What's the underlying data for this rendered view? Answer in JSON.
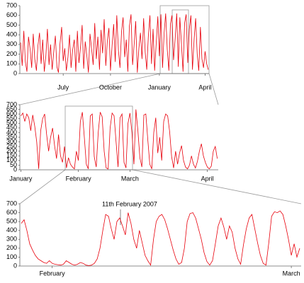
{
  "chart_data": [
    {
      "type": "line",
      "categories": [
        null,
        null,
        null,
        null,
        null,
        null,
        null,
        null,
        null,
        null,
        null,
        null,
        null,
        null,
        null,
        null,
        null,
        null,
        null,
        null,
        null,
        null,
        null,
        null,
        null,
        null,
        null,
        "July",
        null,
        null,
        null,
        null,
        null,
        null,
        null,
        null,
        null,
        null,
        null,
        null,
        null,
        null,
        null,
        null,
        null,
        null,
        null,
        null,
        null,
        null,
        null,
        null,
        null,
        null,
        null,
        null,
        null,
        "October",
        null,
        null,
        null,
        null,
        null,
        null,
        null,
        null,
        null,
        null,
        null,
        null,
        null,
        null,
        null,
        null,
        null,
        null,
        null,
        null,
        null,
        null,
        null,
        null,
        null,
        null,
        null,
        null,
        null,
        null,
        "January",
        null,
        null,
        null,
        null,
        null,
        null,
        null,
        null,
        null,
        null,
        null,
        null,
        null,
        null,
        null,
        null,
        null,
        null,
        null,
        null,
        null,
        null,
        null,
        null,
        null,
        null,
        null,
        null,
        "April",
        null,
        null
      ],
      "series": [
        {
          "color": "#e8000b",
          "values": [
            320,
            80,
            440,
            120,
            20,
            380,
            250,
            60,
            410,
            150,
            30,
            290,
            420,
            100,
            350,
            20,
            180,
            460,
            90,
            300,
            40,
            220,
            390,
            70,
            10,
            310,
            480,
            130,
            260,
            30,
            170,
            400,
            60,
            240,
            350,
            20,
            440,
            110,
            280,
            500,
            50,
            330,
            180,
            10,
            410,
            260,
            90,
            520,
            150,
            380,
            40,
            450,
            210,
            560,
            80,
            340,
            470,
            30,
            290,
            510,
            120,
            600,
            240,
            60,
            430,
            580,
            170,
            350,
            20,
            490,
            610,
            90,
            300,
            540,
            10,
            260,
            420,
            150,
            570,
            220,
            40,
            380,
            600,
            100,
            460,
            30,
            320,
            590,
            180,
            610,
            60,
            420,
            620,
            250,
            30,
            510,
            600,
            140,
            360,
            620,
            70,
            580,
            300,
            20,
            520,
            610,
            110,
            460,
            600,
            40,
            350,
            570,
            200,
            30,
            480,
            150,
            60,
            230,
            100,
            40
          ]
        }
      ],
      "ylim": [
        0,
        700
      ],
      "yticks": [
        0,
        100,
        200,
        300,
        400,
        500,
        600,
        700
      ]
    },
    {
      "type": "line",
      "categories": [
        "January",
        null,
        null,
        null,
        null,
        null,
        null,
        null,
        null,
        null,
        null,
        null,
        null,
        null,
        null,
        null,
        null,
        null,
        null,
        null,
        null,
        null,
        null,
        null,
        null,
        null,
        null,
        null,
        null,
        "February",
        null,
        null,
        null,
        null,
        null,
        null,
        null,
        null,
        null,
        null,
        null,
        null,
        null,
        null,
        null,
        null,
        null,
        null,
        null,
        null,
        null,
        null,
        null,
        null,
        null,
        "March",
        null,
        null,
        null,
        null,
        null,
        null,
        null,
        null,
        null,
        null,
        null,
        null,
        null,
        null,
        null,
        null,
        null,
        null,
        null,
        null,
        null,
        null,
        null,
        null,
        null,
        null,
        null,
        null,
        null,
        null,
        null,
        null,
        null,
        null,
        null,
        null,
        null,
        null,
        "April",
        null,
        null,
        null,
        null,
        null
      ],
      "series": [
        {
          "color": "#e8000b",
          "values": [
            580,
            610,
            520,
            600,
            560,
            420,
            590,
            470,
            300,
            10,
            420,
            550,
            600,
            380,
            200,
            350,
            450,
            260,
            120,
            380,
            150,
            80,
            250,
            20,
            130,
            60,
            30,
            10,
            200,
            100,
            520,
            620,
            350,
            60,
            10,
            580,
            600,
            140,
            30,
            400,
            620,
            570,
            200,
            20,
            10,
            450,
            610,
            580,
            300,
            30,
            560,
            600,
            80,
            20,
            500,
            610,
            400,
            60,
            650,
            420,
            130,
            30,
            590,
            600,
            320,
            60,
            10,
            400,
            560,
            180,
            350,
            100,
            520,
            600,
            580,
            410,
            140,
            20,
            200,
            60,
            180,
            260,
            100,
            30,
            10,
            50,
            150,
            60,
            20,
            90,
            200,
            280,
            150,
            80,
            30,
            10,
            40,
            200,
            250,
            120
          ]
        }
      ],
      "ylim": [
        0,
        700
      ],
      "yticks": [
        0,
        50,
        100,
        150,
        200,
        250,
        300,
        350,
        400,
        450,
        500,
        550,
        600,
        650,
        700
      ]
    },
    {
      "type": "line",
      "annotation": "11th February 2007",
      "categories": [
        null,
        null,
        null,
        null,
        null,
        null,
        null,
        null,
        null,
        null,
        null,
        "February",
        null,
        null,
        null,
        null,
        null,
        null,
        null,
        null,
        null,
        null,
        null,
        null,
        null,
        null,
        null,
        null,
        null,
        null,
        null,
        null,
        null,
        null,
        null,
        null,
        null,
        null,
        null,
        null,
        null,
        null,
        null,
        null,
        null,
        null,
        null,
        null,
        null,
        null,
        null,
        null,
        null,
        null,
        null,
        null,
        null,
        null,
        null,
        null,
        null,
        null,
        null,
        null,
        null,
        null,
        null,
        null,
        null,
        null,
        null,
        null,
        null,
        null,
        null,
        null,
        null,
        null,
        null,
        null,
        null,
        null,
        null,
        null,
        null,
        null,
        null,
        null,
        null,
        null,
        null,
        null,
        null,
        null,
        null,
        null,
        "March",
        null,
        null,
        null
      ],
      "series": [
        {
          "color": "#e8000b",
          "values": [
            480,
            520,
            400,
            250,
            180,
            120,
            80,
            60,
            40,
            30,
            60,
            30,
            20,
            15,
            10,
            20,
            60,
            40,
            20,
            10,
            20,
            40,
            30,
            10,
            5,
            10,
            30,
            80,
            200,
            400,
            580,
            560,
            420,
            300,
            500,
            540,
            450,
            350,
            600,
            480,
            300,
            200,
            400,
            260,
            120,
            60,
            10,
            300,
            500,
            560,
            580,
            520,
            420,
            300,
            180,
            80,
            20,
            40,
            200,
            500,
            590,
            600,
            540,
            420,
            300,
            150,
            50,
            10,
            60,
            250,
            450,
            540,
            440,
            300,
            450,
            380,
            200,
            80,
            20,
            240,
            420,
            540,
            580,
            420,
            260,
            120,
            30,
            10,
            260,
            560,
            610,
            600,
            620,
            580,
            450,
            300,
            120,
            250,
            100,
            200
          ]
        }
      ],
      "ylim": [
        0,
        700
      ],
      "yticks": [
        0,
        100,
        200,
        300,
        400,
        500,
        600,
        700
      ]
    }
  ]
}
